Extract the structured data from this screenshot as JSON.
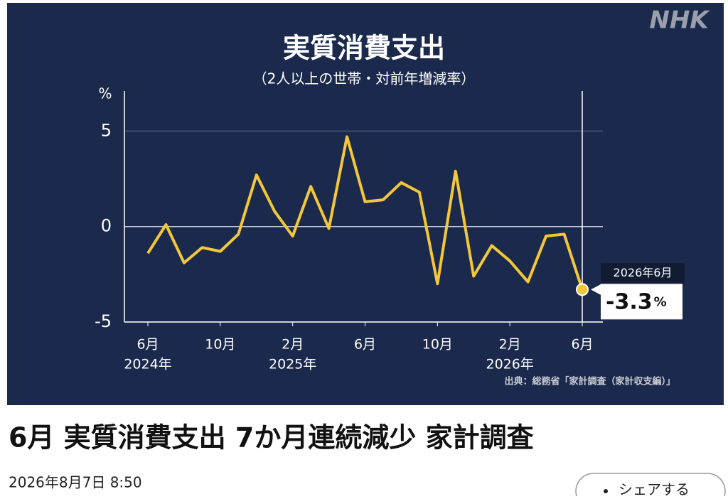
{
  "chart_data": {
    "type": "line",
    "title": "実質消費支出",
    "subtitle": "（2人以上の世帯・対前年増減率）",
    "y_unit": "%",
    "categories": [
      "6月",
      null,
      null,
      null,
      "10月",
      null,
      null,
      null,
      "2月",
      null,
      null,
      null,
      "6月",
      null,
      null,
      null,
      "10月",
      null,
      null,
      null,
      "2月",
      null,
      null,
      null,
      "6月"
    ],
    "year_labels": [
      "2024年",
      null,
      null,
      null,
      null,
      null,
      null,
      null,
      "2025年",
      null,
      null,
      null,
      null,
      null,
      null,
      null,
      null,
      null,
      null,
      null,
      "2026年",
      null,
      null,
      null,
      null
    ],
    "series": [
      {
        "name": "実質消費支出",
        "color": "#f2c73a",
        "values": [
          -1.4,
          0.1,
          -1.9,
          -1.1,
          -1.3,
          -0.4,
          2.7,
          0.8,
          -0.5,
          2.1,
          -0.1,
          4.7,
          1.3,
          1.4,
          2.3,
          1.8,
          -3.0,
          2.9,
          -2.6,
          -1.0,
          -1.8,
          -2.9,
          -0.5,
          -0.4,
          -3.3
        ]
      }
    ],
    "ylim": [
      -5,
      7.1
    ],
    "yticks": [
      5,
      0,
      -5
    ],
    "grid": true,
    "callout_date": "2026年6月",
    "source": "出典：総務省「家計調査（家計収支編）」",
    "logo": "NHK"
  },
  "article": {
    "headline": "6月 実質消費支出 7か月連続減少 家計調査",
    "date": "2026年8月7日 8:50",
    "share": "シェアする"
  }
}
